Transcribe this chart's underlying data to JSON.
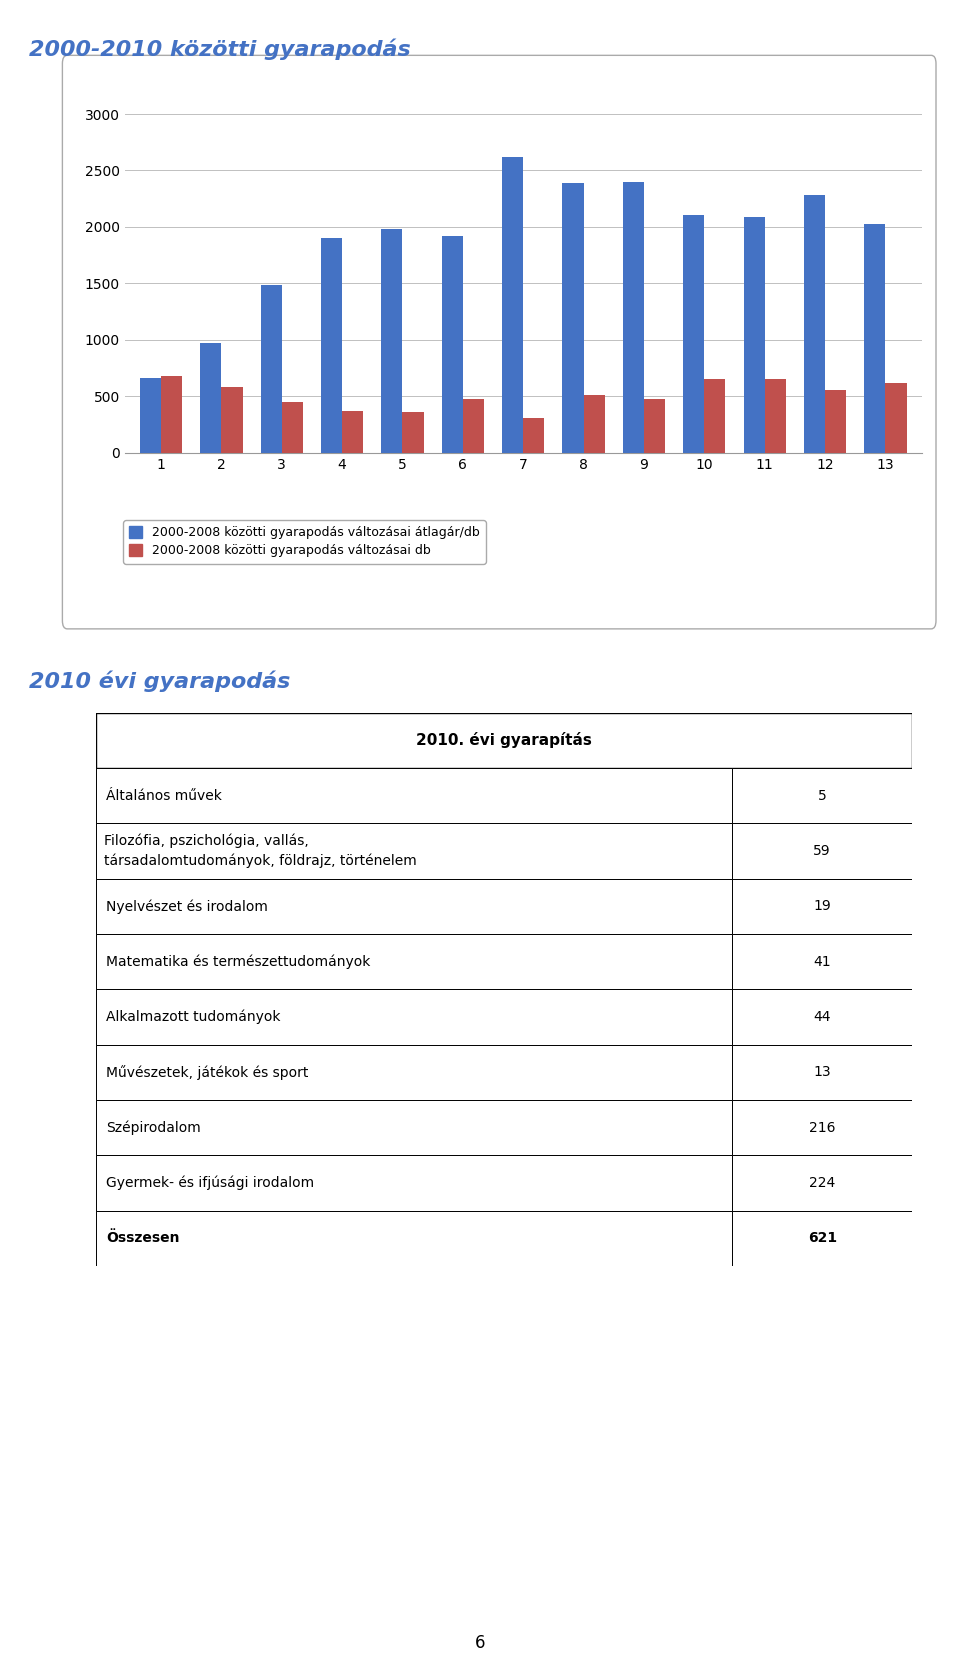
{
  "title": "2000-2010 közötti gyarapodás",
  "title2": "2010 évi gyarapodás",
  "categories": [
    1,
    2,
    3,
    4,
    5,
    6,
    7,
    8,
    9,
    10,
    11,
    12,
    13
  ],
  "blue_values": [
    660,
    970,
    1490,
    1900,
    1980,
    1920,
    2620,
    2390,
    2400,
    2110,
    2090,
    2280,
    2030
  ],
  "red_values": [
    680,
    580,
    450,
    370,
    360,
    480,
    310,
    510,
    480,
    650,
    650,
    560,
    620
  ],
  "blue_color": "#4472C4",
  "red_color": "#C0504D",
  "legend1": "2000-2008 közötti gyarapodás változásai átlagár/db",
  "legend2": "2000-2008 közötti gyarapodás változásai db",
  "ylim": [
    0,
    3000
  ],
  "yticks": [
    0,
    500,
    1000,
    1500,
    2000,
    2500,
    3000
  ],
  "table_title": "2010. évi gyarapítás",
  "table_rows": [
    [
      "Általános művek",
      "5"
    ],
    [
      "Filozófia, pszichológia, vallás,\ntársadalomtudományok, földrajz, történelem",
      "59"
    ],
    [
      "Nyelvészet és irodalom",
      "19"
    ],
    [
      "Matematika és természettudományok",
      "41"
    ],
    [
      "Alkalmazott tudományok",
      "44"
    ],
    [
      "Művészetek, játékok és sport",
      "13"
    ],
    [
      "Szépirodalom",
      "216"
    ],
    [
      "Gyermek- és ifjúsági irodalom",
      "224"
    ],
    [
      "Összesen",
      "621"
    ]
  ],
  "footer_text": "6",
  "background_color": "#ffffff",
  "chart_bg": "#ffffff",
  "grid_color": "#c0c0c0",
  "title_color": "#4472C4",
  "title_fontsize": 16,
  "axis_fontsize": 10,
  "legend_fontsize": 9,
  "table_fontsize": 10
}
